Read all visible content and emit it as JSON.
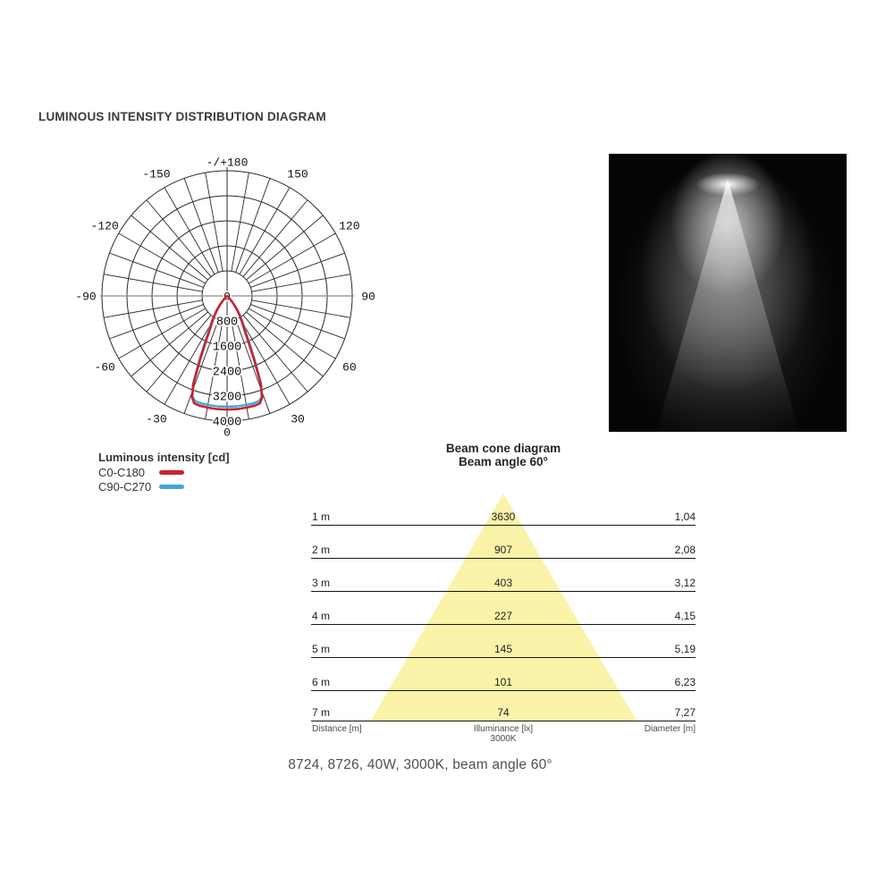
{
  "page": {
    "title": "LUMINOUS INTENSITY DISTRIBUTION DIAGRAM",
    "caption": "8724, 8726, 40W, 3000K, beam angle 60°"
  },
  "polar": {
    "center_value_label": "0",
    "ring_labels": [
      "800",
      "1600",
      "2400",
      "3200",
      "4000"
    ],
    "angle_labels": [
      {
        "a": -150,
        "t": "-150"
      },
      {
        "a": -120,
        "t": "-120"
      },
      {
        "a": -90,
        "t": "-90"
      },
      {
        "a": -60,
        "t": "-60"
      },
      {
        "a": -30,
        "t": "-30"
      },
      {
        "a": 0,
        "t": "0"
      },
      {
        "a": 30,
        "t": "30"
      },
      {
        "a": 60,
        "t": "60"
      },
      {
        "a": 90,
        "t": "90"
      },
      {
        "a": 120,
        "t": "120"
      },
      {
        "a": 150,
        "t": "150"
      },
      {
        "a": 180,
        "t": "-/+180"
      }
    ],
    "grid_color": "#2b2b2b",
    "axis_color": "#8c8c8c",
    "label_color": "#111111"
  },
  "legend": {
    "title": "Luminous intensity [cd]",
    "entries": [
      {
        "label": "C0-C180",
        "color": "#c9232f"
      },
      {
        "label": "C90-C270",
        "color": "#3fa6d8"
      }
    ]
  },
  "photo": {
    "alt": "light-beam-photo"
  },
  "beam_cone": {
    "title_line1": "Beam cone diagram",
    "title_line2": "Beam angle 60°",
    "triangle_color": "#faf3a8",
    "rows": [
      {
        "distance": "1 m",
        "illuminance": "3630",
        "diameter": "1,04"
      },
      {
        "distance": "2 m",
        "illuminance": "907",
        "diameter": "2,08"
      },
      {
        "distance": "3 m",
        "illuminance": "403",
        "diameter": "3,12"
      },
      {
        "distance": "4 m",
        "illuminance": "227",
        "diameter": "4,15"
      },
      {
        "distance": "5 m",
        "illuminance": "145",
        "diameter": "5,19"
      },
      {
        "distance": "6 m",
        "illuminance": "101",
        "diameter": "6,23"
      },
      {
        "distance": "7 m",
        "illuminance": "74",
        "diameter": "7,27"
      }
    ],
    "footer": {
      "distance": "Distance [m]",
      "illuminance": "Illuminance [lx]",
      "cct": "3000K",
      "diameter": "Diameter [m]"
    }
  },
  "chart_data": [
    {
      "type": "line",
      "polar": true,
      "title": "Luminous intensity [cd]",
      "angle_unit": "degrees",
      "angle_zero": "bottom",
      "symmetric": true,
      "radial_axis": {
        "label": "cd",
        "ticks": [
          800,
          1600,
          2400,
          3200,
          4000
        ],
        "max": 4000
      },
      "angle_ticks": [
        -180,
        -150,
        -120,
        -90,
        -60,
        -30,
        0,
        30,
        60,
        90,
        120,
        150,
        180
      ],
      "peak_intensity_cd": 3630,
      "series": [
        {
          "name": "C0-C180",
          "color": "#c9232f",
          "points": [
            [
              0,
              3630
            ],
            [
              5,
              3630
            ],
            [
              10,
              3625
            ],
            [
              14,
              3615
            ],
            [
              17,
              3590
            ],
            [
              19,
              3440
            ],
            [
              21,
              3000
            ],
            [
              23,
              2200
            ],
            [
              25,
              1600
            ],
            [
              27,
              1230
            ],
            [
              30,
              950
            ],
            [
              33,
              730
            ],
            [
              36,
              520
            ],
            [
              39,
              330
            ],
            [
              42,
              190
            ],
            [
              45,
              90
            ],
            [
              48,
              40
            ],
            [
              51,
              15
            ],
            [
              54,
              0
            ]
          ]
        },
        {
          "name": "C90-C270",
          "color": "#3fa6d8",
          "points": [
            [
              0,
              3540
            ],
            [
              5,
              3542
            ],
            [
              10,
              3538
            ],
            [
              14,
              3530
            ],
            [
              17,
              3510
            ],
            [
              19,
              3400
            ],
            [
              21,
              3050
            ],
            [
              23,
              2350
            ],
            [
              25,
              1750
            ],
            [
              27,
              1350
            ],
            [
              30,
              1030
            ],
            [
              33,
              790
            ],
            [
              36,
              560
            ],
            [
              39,
              360
            ],
            [
              42,
              210
            ],
            [
              45,
              100
            ],
            [
              48,
              45
            ],
            [
              51,
              18
            ],
            [
              54,
              0
            ]
          ]
        }
      ]
    },
    {
      "type": "table",
      "title": "Beam cone diagram",
      "subtitle": "Beam angle 60°",
      "columns": [
        "Distance [m]",
        "Illuminance [lx] 3000K",
        "Diameter [m]"
      ],
      "rows": [
        [
          "1 m",
          3630,
          1.04
        ],
        [
          "2 m",
          907,
          2.08
        ],
        [
          "3 m",
          403,
          3.12
        ],
        [
          "4 m",
          227,
          4.15
        ],
        [
          "5 m",
          145,
          5.19
        ],
        [
          "6 m",
          101,
          6.23
        ],
        [
          "7 m",
          74,
          7.27
        ]
      ]
    }
  ]
}
